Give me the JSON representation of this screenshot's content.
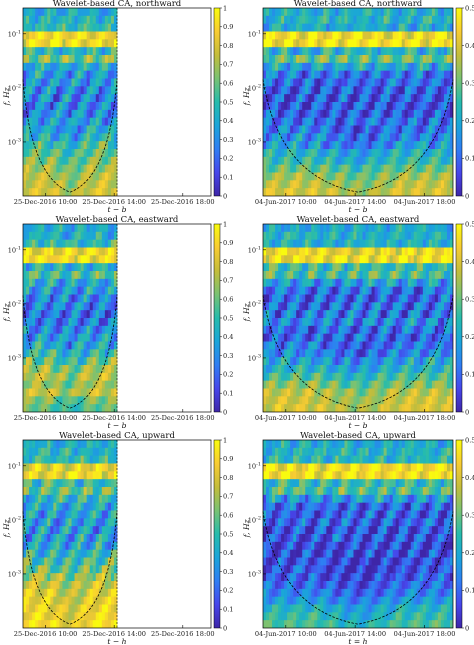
{
  "figure": {
    "colormap": [
      "#3e26a8",
      "#4746eb",
      "#2f7ef3",
      "#1aa5da",
      "#26bcac",
      "#79c273",
      "#c4bd3b",
      "#f8cc33",
      "#f9fb0e"
    ],
    "colorbar_ticks": [
      "0",
      "0.1",
      "0.2",
      "0.3",
      "0.4",
      "0.5",
      "0.6",
      "0.7",
      "0.8",
      "0.9",
      "1"
    ],
    "colorbar_ticks_right": [
      "0",
      "0.1",
      "0.2",
      "0.3",
      "0.4",
      "0.5"
    ]
  },
  "chart_data": [
    {
      "type": "heatmap",
      "title": "Wavelet-based CA, northward",
      "xlabel": "t − b",
      "ylabel": "f, Hz",
      "xticks": [
        "25-Dec-2016 10:00",
        "25-Dec-2016 14:00",
        "25-Dec-2016 18:00"
      ],
      "ylim": [
        0.0001,
        0.3
      ],
      "yticks": [
        "10^-1",
        "10^-2",
        "10^-3"
      ],
      "yscale": "log",
      "clim": [
        0,
        1
      ],
      "data_extent_fraction": 0.5,
      "cone_of_influence": true,
      "row_values": [
        0.42,
        0.45,
        0.5,
        0.88,
        0.9,
        0.45,
        0.62,
        0.4,
        0.35,
        0.33,
        0.3,
        0.28,
        0.26,
        0.3,
        0.35,
        0.4,
        0.45,
        0.55,
        0.6,
        0.65,
        0.7,
        0.75,
        0.78,
        0.8
      ]
    },
    {
      "type": "heatmap",
      "title": "Wavelet-based CA, northward",
      "xlabel": "t − b",
      "ylabel": "f, Hz",
      "xticks": [
        "04-Jun-2017 10:00",
        "04-Jun-2017 14:00",
        "04-Jun-2017 18:00"
      ],
      "ylim": [
        0.0001,
        0.3
      ],
      "yticks": [
        "10^-1",
        "10^-2",
        "10^-3"
      ],
      "yscale": "log",
      "clim": [
        0,
        0.55
      ],
      "data_extent_fraction": 1.0,
      "cone_of_influence": true,
      "row_values": [
        0.42,
        0.45,
        0.4,
        0.9,
        0.92,
        0.45,
        0.6,
        0.38,
        0.25,
        0.2,
        0.18,
        0.15,
        0.15,
        0.18,
        0.22,
        0.25,
        0.3,
        0.35,
        0.45,
        0.5,
        0.6,
        0.7,
        0.75,
        0.8
      ]
    },
    {
      "type": "heatmap",
      "title": "Wavelet-based CA, eastward",
      "xlabel": "t − b",
      "ylabel": "f, Hz",
      "xticks": [
        "25-Dec-2016 10:00",
        "25-Dec-2016 14:00",
        "25-Dec-2016 18:00"
      ],
      "ylim": [
        0.0001,
        0.3
      ],
      "yticks": [
        "10^-1",
        "10^-2",
        "10^-3"
      ],
      "yscale": "log",
      "clim": [
        0,
        1
      ],
      "data_extent_fraction": 0.5,
      "cone_of_influence": true,
      "row_values": [
        0.4,
        0.42,
        0.5,
        0.88,
        0.9,
        0.45,
        0.55,
        0.4,
        0.35,
        0.3,
        0.28,
        0.25,
        0.25,
        0.3,
        0.35,
        0.42,
        0.5,
        0.6,
        0.7,
        0.75,
        0.7,
        0.78,
        0.65,
        0.6
      ]
    },
    {
      "type": "heatmap",
      "title": "Wavelet-based CA, eastward",
      "xlabel": "t − b",
      "ylabel": "f, Hz",
      "xticks": [
        "04-Jun-2017 10:00",
        "04-Jun-2017 14:00",
        "04-Jun-2017 18:00"
      ],
      "ylim": [
        0.0001,
        0.3
      ],
      "yticks": [
        "10^-1",
        "10^-2",
        "10^-3"
      ],
      "yscale": "log",
      "clim": [
        0,
        0.55
      ],
      "data_extent_fraction": 1.0,
      "cone_of_influence": true,
      "row_values": [
        0.4,
        0.45,
        0.45,
        0.88,
        0.9,
        0.5,
        0.55,
        0.35,
        0.22,
        0.2,
        0.22,
        0.25,
        0.3,
        0.22,
        0.2,
        0.25,
        0.3,
        0.38,
        0.45,
        0.55,
        0.65,
        0.75,
        0.78,
        0.8
      ]
    },
    {
      "type": "heatmap",
      "title": "Wavelet-based CA, upward",
      "xlabel": "t − h",
      "ylabel": "f, Hz",
      "xticks": [
        "25-Dec-2016 10:00",
        "25-Dec-2016 14:00",
        "25-Dec-2016 18:00"
      ],
      "ylim": [
        0.0001,
        0.3
      ],
      "yticks": [
        "10^-1",
        "10^-2",
        "10^-3"
      ],
      "yscale": "log",
      "clim": [
        0,
        1
      ],
      "data_extent_fraction": 0.5,
      "cone_of_influence": true,
      "row_values": [
        0.42,
        0.45,
        0.5,
        0.85,
        0.88,
        0.5,
        0.6,
        0.45,
        0.4,
        0.38,
        0.35,
        0.35,
        0.38,
        0.4,
        0.45,
        0.55,
        0.62,
        0.72,
        0.78,
        0.82,
        0.85,
        0.88,
        0.9,
        0.92
      ]
    },
    {
      "type": "heatmap",
      "title": "Wavelet-based CA, upward",
      "xlabel": "t = h",
      "ylabel": "f, Hz",
      "xticks": [
        "04-Jun-2017 10:00",
        "04-Jun-2017 14:00",
        "04-Jun-2017 18:00"
      ],
      "ylim": [
        0.0001,
        0.3
      ],
      "yticks": [
        "10^-1",
        "10^-2",
        "10^-3"
      ],
      "yscale": "log",
      "clim": [
        0,
        0.55
      ],
      "data_extent_fraction": 1.0,
      "cone_of_influence": true,
      "row_values": [
        0.42,
        0.45,
        0.45,
        0.9,
        0.92,
        0.5,
        0.55,
        0.35,
        0.2,
        0.18,
        0.18,
        0.15,
        0.15,
        0.12,
        0.12,
        0.14,
        0.15,
        0.18,
        0.22,
        0.28,
        0.35,
        0.45,
        0.5,
        0.55
      ]
    }
  ]
}
